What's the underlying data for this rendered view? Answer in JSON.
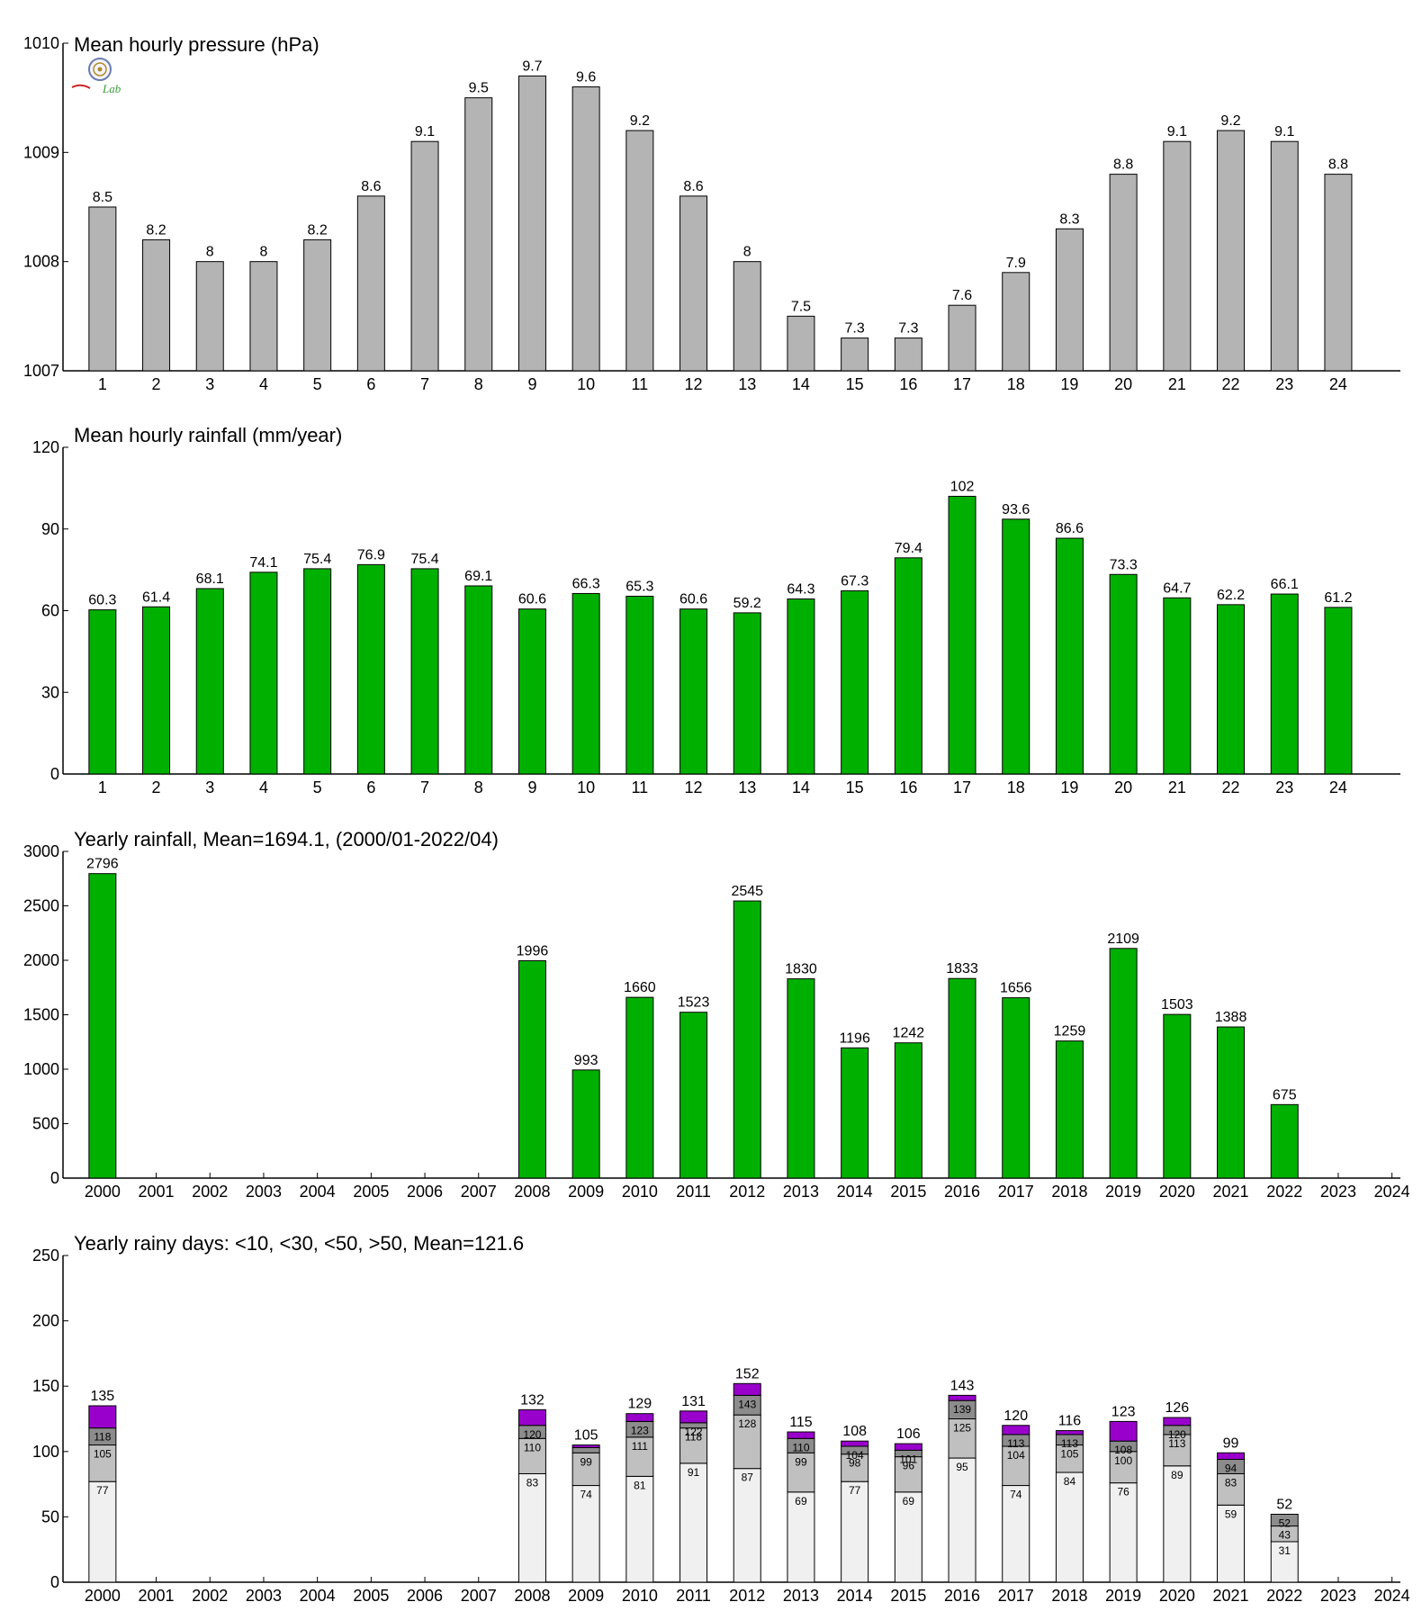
{
  "chart_data": [
    {
      "type": "bar",
      "title": "Mean hourly pressure (hPa)",
      "categories": [
        "1",
        "2",
        "3",
        "4",
        "5",
        "6",
        "7",
        "8",
        "9",
        "10",
        "11",
        "12",
        "13",
        "14",
        "15",
        "16",
        "17",
        "18",
        "19",
        "20",
        "21",
        "22",
        "23",
        "24"
      ],
      "values": [
        1008.5,
        1008.2,
        1008.0,
        1008.0,
        1008.2,
        1008.6,
        1009.1,
        1009.5,
        1009.7,
        1009.6,
        1009.2,
        1008.6,
        1008.0,
        1007.5,
        1007.3,
        1007.3,
        1007.6,
        1007.9,
        1008.3,
        1008.8,
        1009.1,
        1009.2,
        1009.1,
        1008.8
      ],
      "data_labels": [
        "8.5",
        "8.2",
        "8",
        "8",
        "8.2",
        "8.6",
        "9.1",
        "9.5",
        "9.7",
        "9.6",
        "9.2",
        "8.6",
        "8",
        "7.5",
        "7.3",
        "7.3",
        "7.6",
        "7.9",
        "8.3",
        "8.8",
        "9.1",
        "9.2",
        "9.1",
        "8.8"
      ],
      "ylim": [
        1007,
        1010
      ],
      "yticks": [
        "1007",
        "1008",
        "1009",
        "1010"
      ],
      "color": "#b4b4b4",
      "grid": false
    },
    {
      "type": "bar",
      "title": "Mean hourly rainfall (mm/year)",
      "categories": [
        "1",
        "2",
        "3",
        "4",
        "5",
        "6",
        "7",
        "8",
        "9",
        "10",
        "11",
        "12",
        "13",
        "14",
        "15",
        "16",
        "17",
        "18",
        "19",
        "20",
        "21",
        "22",
        "23",
        "24"
      ],
      "values": [
        60.3,
        61.4,
        68.1,
        74.1,
        75.4,
        76.9,
        75.4,
        69.1,
        60.6,
        66.3,
        65.3,
        60.6,
        59.2,
        64.3,
        67.3,
        79.4,
        102,
        93.6,
        86.6,
        73.3,
        64.7,
        62.2,
        66.1,
        61.2
      ],
      "data_labels": [
        "60.3",
        "61.4",
        "68.1",
        "74.1",
        "75.4",
        "76.9",
        "75.4",
        "69.1",
        "60.6",
        "66.3",
        "65.3",
        "60.6",
        "59.2",
        "64.3",
        "67.3",
        "79.4",
        "102",
        "93.6",
        "86.6",
        "73.3",
        "64.7",
        "62.2",
        "66.1",
        "61.2"
      ],
      "ylim": [
        0,
        120
      ],
      "yticks": [
        "0",
        "30",
        "60",
        "90",
        "120"
      ],
      "color": "#00b000",
      "grid": false
    },
    {
      "type": "bar",
      "title": "Yearly rainfall, Mean=1694.1, (2000/01-2022/04)",
      "categories": [
        "2000",
        "2001",
        "2002",
        "2003",
        "2004",
        "2005",
        "2006",
        "2007",
        "2008",
        "2009",
        "2010",
        "2011",
        "2012",
        "2013",
        "2014",
        "2015",
        "2016",
        "2017",
        "2018",
        "2019",
        "2020",
        "2021",
        "2022",
        "2023",
        "2024"
      ],
      "values": [
        2796,
        null,
        null,
        null,
        null,
        null,
        null,
        null,
        1996,
        993,
        1660,
        1523,
        2545,
        1830,
        1196,
        1242,
        1833,
        1656,
        1259,
        2109,
        1503,
        1388,
        675,
        null,
        null
      ],
      "data_labels": [
        "2796",
        "",
        "",
        "",
        "",
        "",
        "",
        "",
        "1996",
        "993",
        "1660",
        "1523",
        "2545",
        "1830",
        "1196",
        "1242",
        "1833",
        "1656",
        "1259",
        "2109",
        "1503",
        "1388",
        "675",
        "",
        ""
      ],
      "ylim": [
        0,
        3000
      ],
      "yticks": [
        "0",
        "500",
        "1000",
        "1500",
        "2000",
        "2500",
        "3000"
      ],
      "color": "#00b000",
      "grid": false
    },
    {
      "type": "bar",
      "stacked": true,
      "title": "Yearly rainy days: <10, <30, <50, >50, Mean=121.6",
      "categories": [
        "2000",
        "2001",
        "2002",
        "2003",
        "2004",
        "2005",
        "2006",
        "2007",
        "2008",
        "2009",
        "2010",
        "2011",
        "2012",
        "2013",
        "2014",
        "2015",
        "2016",
        "2017",
        "2018",
        "2019",
        "2020",
        "2021",
        "2022",
        "2023",
        "2024"
      ],
      "cumulative_series": [
        {
          "name": "<10",
          "color": "#f0f0f0",
          "values": [
            77,
            null,
            null,
            null,
            null,
            null,
            null,
            null,
            83,
            74,
            81,
            91,
            87,
            69,
            77,
            69,
            95,
            74,
            84,
            76,
            89,
            59,
            31,
            null,
            null
          ]
        },
        {
          "name": "<30",
          "color": "#c0c0c0",
          "values": [
            105,
            null,
            null,
            null,
            null,
            null,
            null,
            null,
            110,
            99,
            111,
            118,
            128,
            99,
            98,
            96,
            125,
            104,
            105,
            100,
            113,
            83,
            43,
            null,
            null
          ]
        },
        {
          "name": "<50",
          "color": "#8c8c8c",
          "values": [
            118,
            null,
            null,
            null,
            null,
            null,
            null,
            null,
            120,
            103,
            123,
            122,
            143,
            110,
            104,
            101,
            139,
            113,
            113,
            108,
            120,
            94,
            52,
            null,
            null
          ]
        },
        {
          "name": ">50",
          "color": "#9900cc",
          "values": [
            135,
            null,
            null,
            null,
            null,
            null,
            null,
            null,
            132,
            105,
            129,
            131,
            152,
            115,
            108,
            106,
            143,
            120,
            116,
            123,
            126,
            99,
            52,
            null,
            null
          ]
        }
      ],
      "segment_labels": [
        [
          "77",
          "105",
          "118"
        ],
        [],
        [],
        [],
        [],
        [],
        [],
        [],
        [
          "83",
          "110",
          "120"
        ],
        [
          "74",
          "99",
          ""
        ],
        [
          "81",
          "111",
          "123"
        ],
        [
          "91",
          "118",
          "122"
        ],
        [
          "87",
          "128",
          "143"
        ],
        [
          "69",
          "99",
          "110"
        ],
        [
          "77",
          "98",
          "104"
        ],
        [
          "69",
          "96",
          "101"
        ],
        [
          "95",
          "125",
          "139"
        ],
        [
          "74",
          "104",
          "113"
        ],
        [
          "84",
          "105",
          "113"
        ],
        [
          "76",
          "100",
          "108"
        ],
        [
          "89",
          "113",
          "120"
        ],
        [
          "59",
          "83",
          "94"
        ],
        [
          "31",
          "43",
          "52"
        ],
        [],
        []
      ],
      "total_labels": [
        "135",
        "",
        "",
        "",
        "",
        "",
        "",
        "",
        "132",
        "105",
        "129",
        "131",
        "152",
        "115",
        "108",
        "106",
        "143",
        "120",
        "116",
        "123",
        "126",
        "99",
        "52",
        "",
        ""
      ],
      "ylim": [
        0,
        250
      ],
      "yticks": [
        "0",
        "50",
        "100",
        "150",
        "200",
        "250"
      ],
      "grid": false
    }
  ],
  "logo": {
    "text": "Lab",
    "icon": "seal-logo-icon",
    "color": "#3a9a3a"
  }
}
